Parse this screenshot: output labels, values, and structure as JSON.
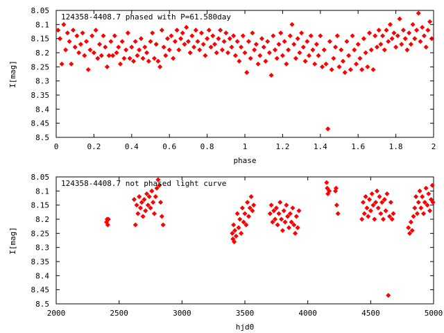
{
  "chart_data": [
    {
      "type": "scatter",
      "title": "124358-4408.7 phased with P=61.580day",
      "xlabel": "phase",
      "ylabel": "I[mag]",
      "xlim": [
        0,
        2
      ],
      "ylim": [
        8.05,
        8.5
      ],
      "y_inverted": true,
      "grid": false,
      "marker_color": "#ff0000",
      "xticks": [
        "0",
        "0.2",
        "0.4",
        "0.6",
        "0.8",
        "1",
        "1.2",
        "1.4",
        "1.6",
        "1.8",
        "2"
      ],
      "xtick_values": [
        0,
        0.2,
        0.4,
        0.6,
        0.8,
        1,
        1.2,
        1.4,
        1.6,
        1.8,
        2
      ],
      "yticks": [
        "8.05",
        "8.1",
        "8.15",
        "8.2",
        "8.25",
        "8.3",
        "8.35",
        "8.4",
        "8.45",
        "8.5"
      ],
      "ytick_values": [
        8.05,
        8.1,
        8.15,
        8.2,
        8.25,
        8.3,
        8.35,
        8.4,
        8.45,
        8.5
      ],
      "points": [
        [
          0.01,
          8.12
        ],
        [
          0.02,
          8.15
        ],
        [
          0.03,
          8.24
        ],
        [
          0.04,
          8.1
        ],
        [
          0.05,
          8.19
        ],
        [
          0.06,
          8.13
        ],
        [
          0.07,
          8.16
        ],
        [
          0.08,
          8.24
        ],
        [
          0.09,
          8.12
        ],
        [
          0.1,
          8.18
        ],
        [
          0.11,
          8.14
        ],
        [
          0.12,
          8.2
        ],
        [
          0.13,
          8.17
        ],
        [
          0.14,
          8.13
        ],
        [
          0.15,
          8.21
        ],
        [
          0.16,
          8.16
        ],
        [
          0.17,
          8.26
        ],
        [
          0.18,
          8.19
        ],
        [
          0.19,
          8.14
        ],
        [
          0.2,
          8.2
        ],
        [
          0.21,
          8.12
        ],
        [
          0.22,
          8.22
        ],
        [
          0.23,
          8.17
        ],
        [
          0.24,
          8.21
        ],
        [
          0.25,
          8.14
        ],
        [
          0.26,
          8.18
        ],
        [
          0.27,
          8.25
        ],
        [
          0.28,
          8.21
        ],
        [
          0.29,
          8.16
        ],
        [
          0.3,
          8.21
        ],
        [
          0.31,
          8.14
        ],
        [
          0.32,
          8.2
        ],
        [
          0.33,
          8.18
        ],
        [
          0.34,
          8.24
        ],
        [
          0.35,
          8.16
        ],
        [
          0.36,
          8.22
        ],
        [
          0.37,
          8.19
        ],
        [
          0.38,
          8.13
        ],
        [
          0.39,
          8.22
        ],
        [
          0.4,
          8.18
        ],
        [
          0.41,
          8.23
        ],
        [
          0.42,
          8.16
        ],
        [
          0.43,
          8.21
        ],
        [
          0.44,
          8.19
        ],
        [
          0.45,
          8.15
        ],
        [
          0.46,
          8.22
        ],
        [
          0.47,
          8.18
        ],
        [
          0.48,
          8.2
        ],
        [
          0.49,
          8.23
        ],
        [
          0.5,
          8.16
        ],
        [
          0.51,
          8.13
        ],
        [
          0.52,
          8.22
        ],
        [
          0.53,
          8.17
        ],
        [
          0.54,
          8.23
        ],
        [
          0.55,
          8.25
        ],
        [
          0.56,
          8.12
        ],
        [
          0.57,
          8.18
        ],
        [
          0.58,
          8.21
        ],
        [
          0.59,
          8.15
        ],
        [
          0.6,
          8.19
        ],
        [
          0.61,
          8.14
        ],
        [
          0.62,
          8.22
        ],
        [
          0.63,
          8.16
        ],
        [
          0.64,
          8.12
        ],
        [
          0.65,
          8.19
        ],
        [
          0.66,
          8.15
        ],
        [
          0.67,
          8.13
        ],
        [
          0.68,
          8.17
        ],
        [
          0.69,
          8.11
        ],
        [
          0.7,
          8.16
        ],
        [
          0.71,
          8.2
        ],
        [
          0.72,
          8.14
        ],
        [
          0.73,
          8.18
        ],
        [
          0.74,
          8.12
        ],
        [
          0.75,
          8.16
        ],
        [
          0.76,
          8.19
        ],
        [
          0.77,
          8.13
        ],
        [
          0.78,
          8.17
        ],
        [
          0.79,
          8.21
        ],
        [
          0.8,
          8.15
        ],
        [
          0.81,
          8.12
        ],
        [
          0.82,
          8.18
        ],
        [
          0.83,
          8.14
        ],
        [
          0.84,
          8.17
        ],
        [
          0.85,
          8.2
        ],
        [
          0.86,
          8.15
        ],
        [
          0.87,
          8.12
        ],
        [
          0.88,
          8.19
        ],
        [
          0.89,
          8.16
        ],
        [
          0.9,
          8.13
        ],
        [
          0.91,
          8.2
        ],
        [
          0.92,
          8.15
        ],
        [
          0.93,
          8.18
        ],
        [
          0.94,
          8.14
        ],
        [
          0.95,
          8.21
        ],
        [
          0.96,
          8.16
        ],
        [
          0.97,
          8.23
        ],
        [
          0.98,
          8.18
        ],
        [
          0.99,
          8.14
        ],
        [
          1.0,
          8.2
        ],
        [
          1.01,
          8.27
        ],
        [
          1.02,
          8.16
        ],
        [
          1.03,
          8.22
        ],
        [
          1.04,
          8.13
        ],
        [
          1.05,
          8.19
        ],
        [
          1.06,
          8.17
        ],
        [
          1.07,
          8.24
        ],
        [
          1.08,
          8.21
        ],
        [
          1.09,
          8.15
        ],
        [
          1.1,
          8.18
        ],
        [
          1.11,
          8.23
        ],
        [
          1.12,
          8.16
        ],
        [
          1.13,
          8.2
        ],
        [
          1.14,
          8.28
        ],
        [
          1.15,
          8.14
        ],
        [
          1.16,
          8.19
        ],
        [
          1.17,
          8.22
        ],
        [
          1.18,
          8.17
        ],
        [
          1.19,
          8.13
        ],
        [
          1.2,
          8.21
        ],
        [
          1.21,
          8.16
        ],
        [
          1.22,
          8.24
        ],
        [
          1.23,
          8.19
        ],
        [
          1.24,
          8.14
        ],
        [
          1.25,
          8.1
        ],
        [
          1.26,
          8.17
        ],
        [
          1.27,
          8.22
        ],
        [
          1.28,
          8.15
        ],
        [
          1.29,
          8.2
        ],
        [
          1.3,
          8.13
        ],
        [
          1.31,
          8.18
        ],
        [
          1.32,
          8.23
        ],
        [
          1.33,
          8.16
        ],
        [
          1.34,
          8.21
        ],
        [
          1.35,
          8.14
        ],
        [
          1.36,
          8.19
        ],
        [
          1.37,
          8.24
        ],
        [
          1.38,
          8.17
        ],
        [
          1.39,
          8.21
        ],
        [
          1.4,
          8.14
        ],
        [
          1.41,
          8.25
        ],
        [
          1.42,
          8.19
        ],
        [
          1.43,
          8.24
        ],
        [
          1.44,
          8.47
        ],
        [
          1.45,
          8.16
        ],
        [
          1.46,
          8.26
        ],
        [
          1.47,
          8.22
        ],
        [
          1.48,
          8.18
        ],
        [
          1.49,
          8.14
        ],
        [
          1.5,
          8.25
        ],
        [
          1.51,
          8.19
        ],
        [
          1.52,
          8.23
        ],
        [
          1.53,
          8.27
        ],
        [
          1.54,
          8.16
        ],
        [
          1.55,
          8.21
        ],
        [
          1.56,
          8.26
        ],
        [
          1.57,
          8.14
        ],
        [
          1.58,
          8.19
        ],
        [
          1.59,
          8.24
        ],
        [
          1.6,
          8.17
        ],
        [
          1.61,
          8.22
        ],
        [
          1.62,
          8.26
        ],
        [
          1.63,
          8.15
        ],
        [
          1.64,
          8.2
        ],
        [
          1.65,
          8.25
        ],
        [
          1.66,
          8.13
        ],
        [
          1.67,
          8.19
        ],
        [
          1.68,
          8.26
        ],
        [
          1.69,
          8.14
        ],
        [
          1.7,
          8.18
        ],
        [
          1.71,
          8.12
        ],
        [
          1.72,
          8.17
        ],
        [
          1.73,
          8.14
        ],
        [
          1.74,
          8.19
        ],
        [
          1.75,
          8.12
        ],
        [
          1.76,
          8.16
        ],
        [
          1.77,
          8.1
        ],
        [
          1.78,
          8.15
        ],
        [
          1.79,
          8.13
        ],
        [
          1.8,
          8.18
        ],
        [
          1.81,
          8.14
        ],
        [
          1.82,
          8.08
        ],
        [
          1.83,
          8.17
        ],
        [
          1.84,
          8.12
        ],
        [
          1.85,
          8.15
        ],
        [
          1.86,
          8.19
        ],
        [
          1.87,
          8.13
        ],
        [
          1.88,
          8.17
        ],
        [
          1.89,
          8.1
        ],
        [
          1.9,
          8.15
        ],
        [
          1.91,
          8.12
        ],
        [
          1.92,
          8.06
        ],
        [
          1.93,
          8.16
        ],
        [
          1.94,
          8.11
        ],
        [
          1.95,
          8.14
        ],
        [
          1.96,
          8.18
        ],
        [
          1.97,
          8.12
        ],
        [
          1.98,
          8.09
        ],
        [
          1.99,
          8.15
        ]
      ]
    },
    {
      "type": "scatter",
      "title": "124358-4408.7 not phased light curve",
      "xlabel": "hjd0",
      "ylabel": "I[mag]",
      "xlim": [
        2000,
        5000
      ],
      "ylim": [
        8.05,
        8.5
      ],
      "y_inverted": true,
      "grid": false,
      "marker_color": "#ff0000",
      "xticks": [
        "2000",
        "2500",
        "3000",
        "3500",
        "4000",
        "4500",
        "5000"
      ],
      "xtick_values": [
        2000,
        2500,
        3000,
        3500,
        4000,
        4500,
        5000
      ],
      "yticks": [
        "8.05",
        "8.1",
        "8.15",
        "8.2",
        "8.25",
        "8.3",
        "8.35",
        "8.4",
        "8.45",
        "8.5"
      ],
      "ytick_values": [
        8.05,
        8.1,
        8.15,
        8.2,
        8.25,
        8.3,
        8.35,
        8.4,
        8.45,
        8.5
      ],
      "points": [
        [
          2400,
          8.21
        ],
        [
          2405,
          8.2
        ],
        [
          2410,
          8.22
        ],
        [
          2415,
          8.2
        ],
        [
          2620,
          8.13
        ],
        [
          2630,
          8.22
        ],
        [
          2640,
          8.15
        ],
        [
          2650,
          8.18
        ],
        [
          2660,
          8.12
        ],
        [
          2670,
          8.16
        ],
        [
          2680,
          8.14
        ],
        [
          2690,
          8.19
        ],
        [
          2700,
          8.13
        ],
        [
          2710,
          8.17
        ],
        [
          2720,
          8.11
        ],
        [
          2730,
          8.15
        ],
        [
          2740,
          8.12
        ],
        [
          2750,
          8.16
        ],
        [
          2760,
          8.1
        ],
        [
          2770,
          8.14
        ],
        [
          2780,
          8.18
        ],
        [
          2790,
          8.12
        ],
        [
          2800,
          8.09
        ],
        [
          2810,
          8.06
        ],
        [
          2820,
          8.08
        ],
        [
          2830,
          8.14
        ],
        [
          2840,
          8.19
        ],
        [
          2850,
          8.22
        ],
        [
          3400,
          8.25
        ],
        [
          3405,
          8.27
        ],
        [
          3410,
          8.22
        ],
        [
          3415,
          8.28
        ],
        [
          3420,
          8.24
        ],
        [
          3430,
          8.26
        ],
        [
          3440,
          8.18
        ],
        [
          3450,
          8.23
        ],
        [
          3460,
          8.2
        ],
        [
          3470,
          8.25
        ],
        [
          3480,
          8.16
        ],
        [
          3490,
          8.21
        ],
        [
          3500,
          8.18
        ],
        [
          3510,
          8.22
        ],
        [
          3520,
          8.14
        ],
        [
          3530,
          8.19
        ],
        [
          3540,
          8.16
        ],
        [
          3550,
          8.12
        ],
        [
          3560,
          8.17
        ],
        [
          3570,
          8.15
        ],
        [
          3700,
          8.18
        ],
        [
          3710,
          8.15
        ],
        [
          3720,
          8.21
        ],
        [
          3730,
          8.17
        ],
        [
          3740,
          8.2
        ],
        [
          3750,
          8.16
        ],
        [
          3760,
          8.22
        ],
        [
          3770,
          8.18
        ],
        [
          3780,
          8.14
        ],
        [
          3790,
          8.2
        ],
        [
          3800,
          8.24
        ],
        [
          3810,
          8.17
        ],
        [
          3820,
          8.21
        ],
        [
          3830,
          8.15
        ],
        [
          3840,
          8.19
        ],
        [
          3850,
          8.23
        ],
        [
          3860,
          8.18
        ],
        [
          3870,
          8.21
        ],
        [
          3880,
          8.16
        ],
        [
          3890,
          8.22
        ],
        [
          3900,
          8.25
        ],
        [
          3910,
          8.19
        ],
        [
          3920,
          8.23
        ],
        [
          3930,
          8.17
        ],
        [
          4150,
          8.07
        ],
        [
          4155,
          8.09
        ],
        [
          4160,
          8.11
        ],
        [
          4170,
          8.1
        ],
        [
          4220,
          8.1
        ],
        [
          4225,
          8.09
        ],
        [
          4230,
          8.15
        ],
        [
          4240,
          8.18
        ],
        [
          4430,
          8.2
        ],
        [
          4440,
          8.14
        ],
        [
          4450,
          8.18
        ],
        [
          4460,
          8.12
        ],
        [
          4470,
          8.16
        ],
        [
          4480,
          8.19
        ],
        [
          4490,
          8.13
        ],
        [
          4500,
          8.17
        ],
        [
          4510,
          8.11
        ],
        [
          4520,
          8.15
        ],
        [
          4530,
          8.2
        ],
        [
          4540,
          8.14
        ],
        [
          4550,
          8.1
        ],
        [
          4560,
          8.16
        ],
        [
          4570,
          8.12
        ],
        [
          4580,
          8.18
        ],
        [
          4590,
          8.14
        ],
        [
          4600,
          8.2
        ],
        [
          4610,
          8.13
        ],
        [
          4620,
          8.17
        ],
        [
          4630,
          8.11
        ],
        [
          4640,
          8.47
        ],
        [
          4650,
          8.19
        ],
        [
          4660,
          8.14
        ],
        [
          4670,
          8.2
        ],
        [
          4680,
          8.18
        ],
        [
          4800,
          8.23
        ],
        [
          4810,
          8.25
        ],
        [
          4820,
          8.21
        ],
        [
          4830,
          8.24
        ],
        [
          4840,
          8.19
        ],
        [
          4850,
          8.16
        ],
        [
          4860,
          8.12
        ],
        [
          4870,
          8.18
        ],
        [
          4880,
          8.14
        ],
        [
          4890,
          8.1
        ],
        [
          4900,
          8.16
        ],
        [
          4910,
          8.12
        ],
        [
          4920,
          8.18
        ],
        [
          4930,
          8.14
        ],
        [
          4940,
          8.09
        ],
        [
          4950,
          8.15
        ],
        [
          4960,
          8.11
        ],
        [
          4970,
          8.17
        ],
        [
          4980,
          8.13
        ],
        [
          4990,
          8.08
        ],
        [
          4995,
          8.14
        ]
      ]
    }
  ]
}
